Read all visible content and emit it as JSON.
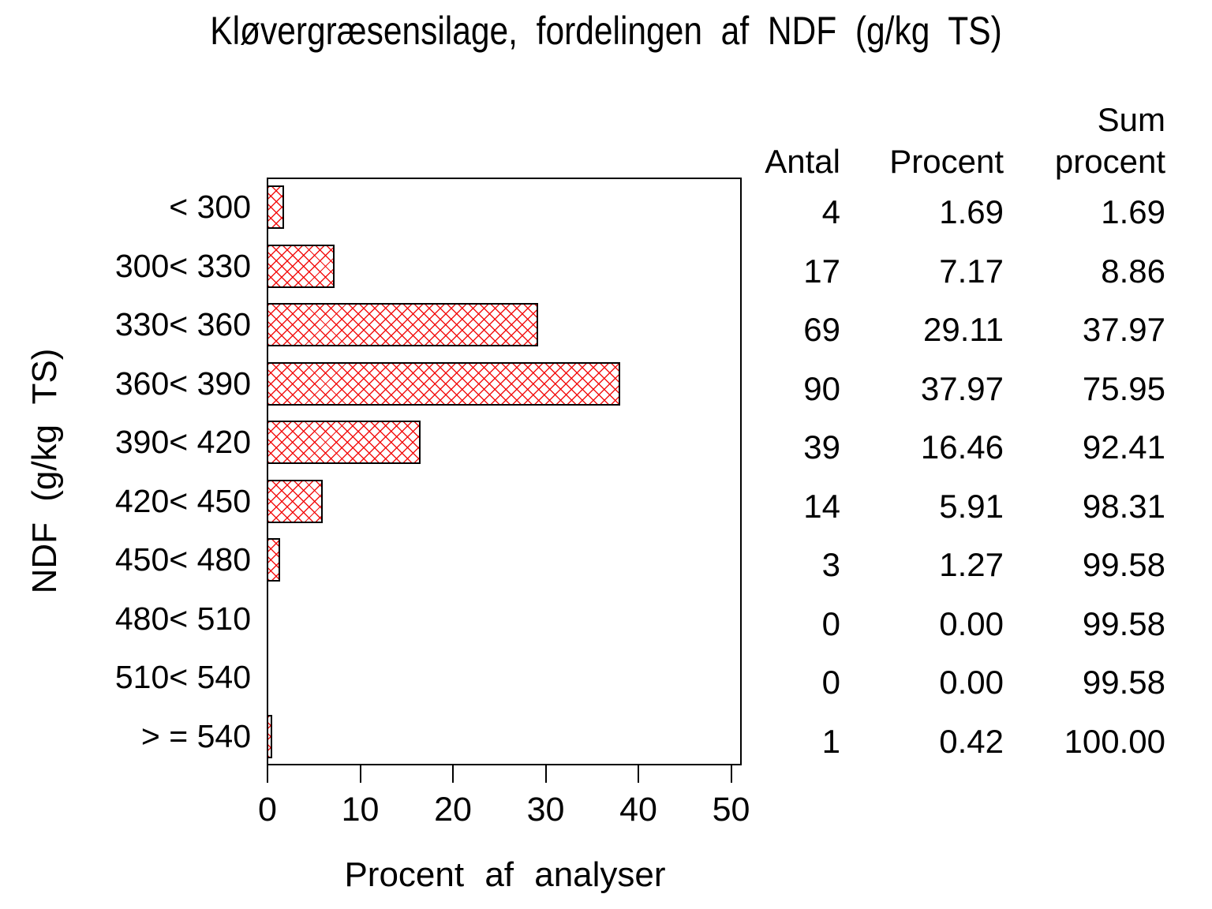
{
  "title": "Kløvergræsensilage, fordelingen af NDF (g/kg TS)",
  "chart_data": {
    "type": "bar",
    "orientation": "horizontal",
    "title": "Kløvergræsensilage, fordelingen af NDF (g/kg TS)",
    "xlabel": "Procent af analyser",
    "ylabel": "NDF (g/kg TS)",
    "categories": [
      "< 300",
      "300< 330",
      "330< 360",
      "360< 390",
      "390< 420",
      "420< 450",
      "450< 480",
      "480< 510",
      "510< 540",
      "> = 540"
    ],
    "values": [
      1.69,
      7.17,
      29.11,
      37.97,
      16.46,
      5.91,
      1.27,
      0.0,
      0.0,
      0.42
    ],
    "counts": [
      4,
      17,
      69,
      90,
      39,
      14,
      3,
      0,
      0,
      1
    ],
    "cumulative_values": [
      1.69,
      8.86,
      37.97,
      75.95,
      92.41,
      98.31,
      99.58,
      99.58,
      99.58,
      100.0
    ],
    "xlim": [
      0,
      50
    ],
    "xticks": [
      "0",
      "10",
      "20",
      "30",
      "40",
      "50"
    ],
    "grid": false,
    "legend": "none",
    "bar_style": "crosshatch",
    "bar_hatch_color": "#f20808",
    "bar_border_color": "#000000",
    "frame_color": "#000000",
    "background_color": "#ffffff"
  },
  "table": {
    "header": {
      "col1": "Antal",
      "col2": "Procent",
      "col3_line1": "Sum",
      "col3_line2": "procent"
    },
    "rows": [
      [
        "4",
        "1.69",
        "1.69"
      ],
      [
        "17",
        "7.17",
        "8.86"
      ],
      [
        "69",
        "29.11",
        "37.97"
      ],
      [
        "90",
        "37.97",
        "75.95"
      ],
      [
        "39",
        "16.46",
        "92.41"
      ],
      [
        "14",
        "5.91",
        "98.31"
      ],
      [
        "3",
        "1.27",
        "99.58"
      ],
      [
        "0",
        "0.00",
        "99.58"
      ],
      [
        "0",
        "0.00",
        "99.58"
      ],
      [
        "1",
        "0.42",
        "100.00"
      ]
    ]
  }
}
